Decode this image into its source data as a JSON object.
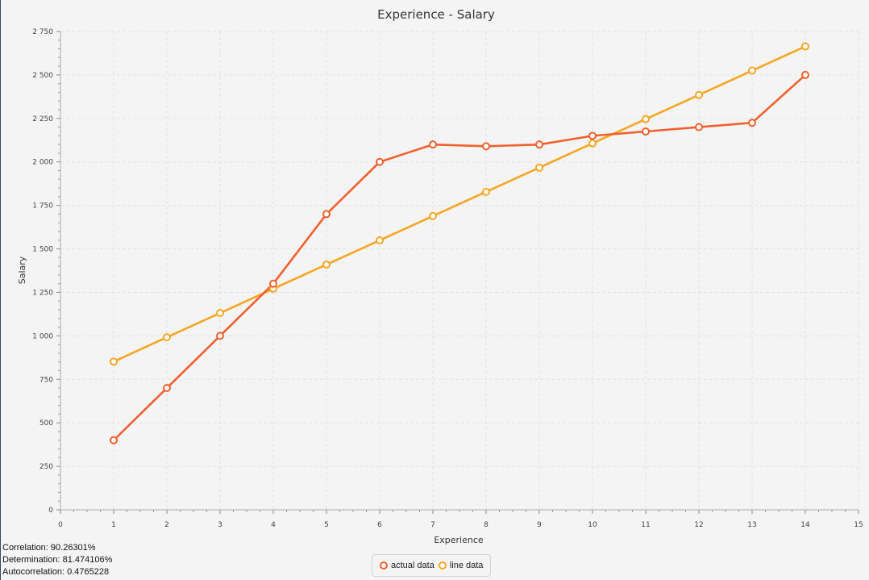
{
  "chart_data": {
    "type": "line",
    "title": "Experience -  Salary",
    "xlabel": "Experience",
    "ylabel": "Salary",
    "xlim": [
      0,
      15
    ],
    "ylim": [
      0,
      2750
    ],
    "x_ticks": [
      "0",
      "1",
      "2",
      "3",
      "4",
      "5",
      "6",
      "7",
      "8",
      "9",
      "10",
      "11",
      "12",
      "13",
      "14",
      "15"
    ],
    "y_ticks": [
      "0",
      "250",
      "500",
      "750",
      "1 000",
      "1 250",
      "1 500",
      "1 750",
      "2 000",
      "2 250",
      "2 500",
      "2 750"
    ],
    "grid": true,
    "legend_position": "bottom",
    "series": [
      {
        "name": "actual data",
        "color": "#f0602c",
        "x": [
          1,
          2,
          3,
          4,
          5,
          6,
          7,
          8,
          9,
          10,
          11,
          12,
          13,
          14
        ],
        "y": [
          400,
          700,
          1000,
          1300,
          1700,
          2000,
          2100,
          2090,
          2100,
          2150,
          2175,
          2200,
          2225,
          2500
        ]
      },
      {
        "name": "line data",
        "color": "#f5a623",
        "x": [
          1,
          2,
          3,
          4,
          5,
          6,
          7,
          8,
          9,
          10,
          11,
          12,
          13,
          14
        ],
        "y": [
          852,
          992,
          1131,
          1271,
          1410,
          1549,
          1689,
          1828,
          1967,
          2107,
          2246,
          2385,
          2525,
          2664
        ]
      }
    ]
  },
  "stats": {
    "correlation": "Correlation: 90.26301%",
    "determination": "Determination: 81.474106%",
    "autocorrelation": "Autocorrelation: 0.4765228"
  }
}
